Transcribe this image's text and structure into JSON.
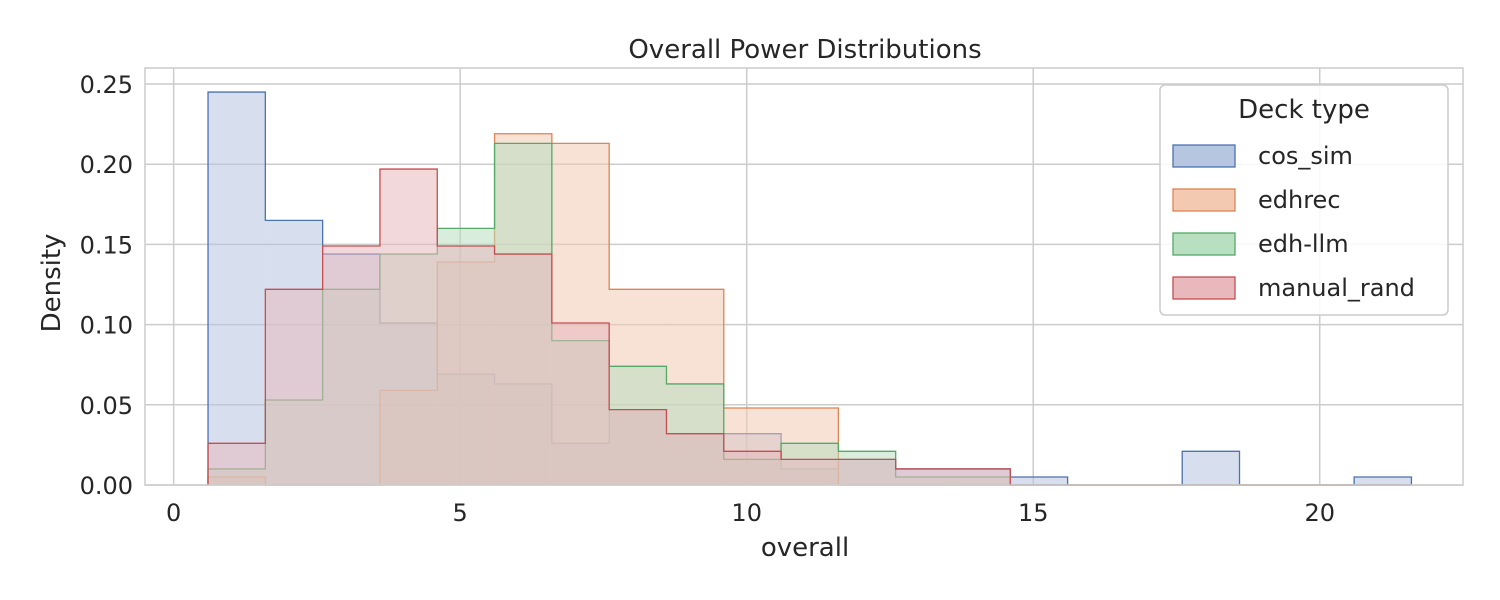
{
  "chart_data": {
    "type": "histogram",
    "title": "Overall Power Distributions",
    "xlabel": "overall",
    "ylabel": "Density",
    "xlim": [
      -0.5,
      22.5
    ],
    "ylim": [
      0,
      0.26
    ],
    "xticks": [
      0,
      5,
      10,
      15,
      20
    ],
    "xtick_labels": [
      "0",
      "5",
      "10",
      "15",
      "20"
    ],
    "yticks": [
      0,
      0.05,
      0.1,
      0.15,
      0.2,
      0.25
    ],
    "ytick_labels": [
      "0.00",
      "0.05",
      "0.10",
      "0.15",
      "0.20",
      "0.25"
    ],
    "grid": true,
    "legend": {
      "title": "Deck type",
      "placement": "top-right"
    },
    "bin_edges": [
      0.6,
      1.6,
      2.6,
      3.6,
      4.6,
      5.6,
      6.6,
      7.6,
      8.6,
      9.6,
      10.6,
      11.6,
      12.6,
      13.6,
      14.6,
      15.6,
      16.6,
      17.6,
      18.6,
      19.6,
      20.6,
      21.6
    ],
    "series": [
      {
        "name": "cos_sim",
        "fill": "#b6c5e0",
        "edge": "#4c72b0",
        "values": [
          0.245,
          0.165,
          0.144,
          0.101,
          0.069,
          0.063,
          0.026,
          0.047,
          0.032,
          0.032,
          0.01,
          0.016,
          0.01,
          0.01,
          0.005,
          0,
          0,
          0.021,
          0,
          0,
          0.005
        ]
      },
      {
        "name": "edhrec",
        "fill": "#f3c9b2",
        "edge": "#dd8452",
        "values": [
          0.005,
          0,
          0,
          0.059,
          0.139,
          0.219,
          0.213,
          0.122,
          0.122,
          0.048,
          0.048,
          0,
          0,
          0,
          0,
          0,
          0,
          0,
          0,
          0,
          0
        ]
      },
      {
        "name": "edh-llm",
        "fill": "#b8dfbf",
        "edge": "#55a868",
        "values": [
          0.01,
          0.053,
          0.122,
          0.144,
          0.16,
          0.213,
          0.09,
          0.074,
          0.063,
          0.016,
          0.026,
          0.021,
          0.005,
          0.005,
          0,
          0,
          0,
          0,
          0,
          0,
          0
        ]
      },
      {
        "name": "manual_rand",
        "fill": "#e8b8bd",
        "edge": "#c44e52",
        "values": [
          0.026,
          0.122,
          0.149,
          0.197,
          0.149,
          0.144,
          0.101,
          0.047,
          0.032,
          0.021,
          0.016,
          0.016,
          0.01,
          0.01,
          0,
          0,
          0,
          0,
          0,
          0,
          0
        ]
      }
    ]
  }
}
